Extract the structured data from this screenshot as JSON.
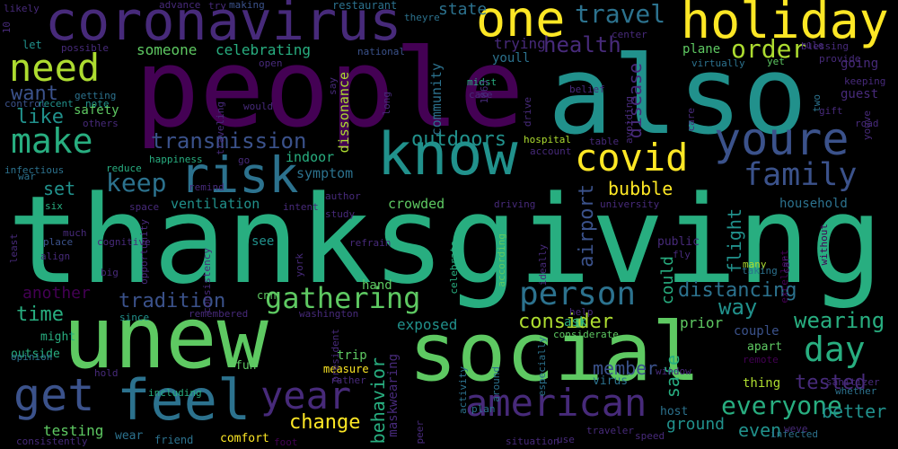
{
  "background": "#000000",
  "palette": {
    "purple": "#440154",
    "indigo": "#472a7a",
    "blue": "#3b528b",
    "steel": "#2c728e",
    "teal": "#21918c",
    "sea": "#28ae80",
    "green": "#5ec962",
    "lime": "#addc30",
    "yellow": "#fde725"
  },
  "words": [
    {
      "text": "thanksgiving",
      "color": "sea"
    },
    {
      "text": "people",
      "color": "purple"
    },
    {
      "text": "also",
      "color": "teal"
    },
    {
      "text": "unew",
      "color": "green"
    },
    {
      "text": "social",
      "color": "green"
    },
    {
      "text": "know",
      "color": "teal"
    },
    {
      "text": "holiday",
      "color": "yellow"
    },
    {
      "text": "coronavirus",
      "color": "indigo"
    },
    {
      "text": "one",
      "color": "yellow"
    },
    {
      "text": "youre",
      "color": "blue"
    },
    {
      "text": "need",
      "color": "lime"
    },
    {
      "text": "make",
      "color": "sea"
    },
    {
      "text": "risk",
      "color": "steel"
    },
    {
      "text": "covid",
      "color": "yellow"
    },
    {
      "text": "feel",
      "color": "steel"
    },
    {
      "text": "american",
      "color": "indigo"
    },
    {
      "text": "get",
      "color": "blue"
    },
    {
      "text": "year",
      "color": "indigo"
    },
    {
      "text": "family",
      "color": "blue"
    },
    {
      "text": "gathering",
      "color": "green"
    },
    {
      "text": "person",
      "color": "steel"
    },
    {
      "text": "everyone",
      "color": "sea"
    },
    {
      "text": "day",
      "color": "sea"
    },
    {
      "text": "keep",
      "color": "steel"
    },
    {
      "text": "travel",
      "color": "steel"
    },
    {
      "text": "order",
      "color": "lime"
    },
    {
      "text": "health",
      "color": "indigo"
    },
    {
      "text": "transmission",
      "color": "blue"
    },
    {
      "text": "outdoors",
      "color": "teal"
    },
    {
      "text": "tradition",
      "color": "blue"
    },
    {
      "text": "distancing",
      "color": "steel"
    },
    {
      "text": "way",
      "color": "teal"
    },
    {
      "text": "wearing",
      "color": "sea"
    },
    {
      "text": "tested",
      "color": "indigo"
    },
    {
      "text": "time",
      "color": "sea"
    },
    {
      "text": "want",
      "color": "blue"
    },
    {
      "text": "like",
      "color": "teal"
    },
    {
      "text": "set",
      "color": "teal"
    },
    {
      "text": "bubble",
      "color": "yellow"
    },
    {
      "text": "consider",
      "color": "lime"
    },
    {
      "text": "safe",
      "color": "sea"
    },
    {
      "text": "airport",
      "color": "blue"
    },
    {
      "text": "disease",
      "color": "indigo"
    },
    {
      "text": "behavior",
      "color": "sea"
    },
    {
      "text": "change",
      "color": "yellow"
    },
    {
      "text": "member",
      "color": "blue"
    },
    {
      "text": "better",
      "color": "teal"
    },
    {
      "text": "even",
      "color": "teal"
    },
    {
      "text": "ground",
      "color": "teal"
    },
    {
      "text": "another",
      "color": "purple"
    },
    {
      "text": "could",
      "color": "sea"
    },
    {
      "text": "flight",
      "color": "teal"
    },
    {
      "text": "exposed",
      "color": "teal"
    },
    {
      "text": "prior",
      "color": "green"
    },
    {
      "text": "state",
      "color": "steel"
    },
    {
      "text": "dissonance",
      "color": "lime"
    },
    {
      "text": "community",
      "color": "steel"
    },
    {
      "text": "safety",
      "color": "green"
    },
    {
      "text": "trying",
      "color": "indigo"
    },
    {
      "text": "celebrating",
      "color": "sea"
    },
    {
      "text": "someone",
      "color": "green"
    },
    {
      "text": "testing",
      "color": "green"
    },
    {
      "text": "maskwearing",
      "color": "indigo"
    },
    {
      "text": "ventilation",
      "color": "teal"
    },
    {
      "text": "crowded",
      "color": "green"
    },
    {
      "text": "symptom",
      "color": "steel"
    },
    {
      "text": "indoor",
      "color": "sea"
    },
    {
      "text": "household",
      "color": "steel"
    },
    {
      "text": "hand",
      "color": "green"
    },
    {
      "text": "youll",
      "color": "steel"
    },
    {
      "text": "plane",
      "color": "green"
    },
    {
      "text": "guest",
      "color": "indigo"
    },
    {
      "text": "going",
      "color": "indigo"
    },
    {
      "text": "thing",
      "color": "lime"
    },
    {
      "text": "trip",
      "color": "green"
    },
    {
      "text": "ask",
      "color": "sea"
    },
    {
      "text": "couple",
      "color": "blue"
    },
    {
      "text": "apart",
      "color": "green"
    },
    {
      "text": "fun",
      "color": "green"
    },
    {
      "text": "wear",
      "color": "steel"
    },
    {
      "text": "friend",
      "color": "steel"
    },
    {
      "text": "comfort",
      "color": "yellow"
    },
    {
      "text": "might",
      "color": "sea"
    },
    {
      "text": "outside",
      "color": "sea"
    },
    {
      "text": "public",
      "color": "indigo"
    },
    {
      "text": "cnn",
      "color": "green"
    },
    {
      "text": "see",
      "color": "teal"
    },
    {
      "text": "host",
      "color": "steel"
    },
    {
      "text": "virus",
      "color": "steel"
    },
    {
      "text": "measure",
      "color": "yellow"
    },
    {
      "text": "control",
      "color": "blue"
    },
    {
      "text": "recent",
      "color": "teal"
    },
    {
      "text": "note",
      "color": "teal"
    },
    {
      "text": "advance",
      "color": "indigo"
    },
    {
      "text": "making",
      "color": "blue"
    },
    {
      "text": "restaurant",
      "color": "steel"
    },
    {
      "text": "theyre",
      "color": "steel"
    },
    {
      "text": "let",
      "color": "teal"
    },
    {
      "text": "getting",
      "color": "steel"
    },
    {
      "text": "others",
      "color": "indigo"
    },
    {
      "text": "happiness",
      "color": "sea"
    },
    {
      "text": "reduce",
      "color": "sea"
    },
    {
      "text": "infectious",
      "color": "steel"
    },
    {
      "text": "war",
      "color": "steel"
    },
    {
      "text": "six",
      "color": "sea"
    },
    {
      "text": "much",
      "color": "indigo"
    },
    {
      "text": "place",
      "color": "blue"
    },
    {
      "text": "big",
      "color": "indigo"
    },
    {
      "text": "since",
      "color": "teal"
    },
    {
      "text": "remembered",
      "color": "indigo"
    },
    {
      "text": "washington",
      "color": "indigo"
    },
    {
      "text": "opinion",
      "color": "steel"
    },
    {
      "text": "rather",
      "color": "indigo"
    },
    {
      "text": "including",
      "color": "sea"
    },
    {
      "text": "foot",
      "color": "purple"
    },
    {
      "text": "author",
      "color": "indigo"
    },
    {
      "text": "driving",
      "color": "indigo"
    },
    {
      "text": "university",
      "color": "indigo"
    },
    {
      "text": "according",
      "color": "green"
    },
    {
      "text": "celebrate",
      "color": "sea"
    },
    {
      "text": "hospital",
      "color": "lime"
    },
    {
      "text": "table",
      "color": "indigo"
    },
    {
      "text": "case",
      "color": "indigo"
    },
    {
      "text": "midst",
      "color": "sea"
    },
    {
      "text": "national",
      "color": "blue"
    },
    {
      "text": "avoiding",
      "color": "indigo"
    },
    {
      "text": "virtually",
      "color": "steel"
    },
    {
      "text": "yet",
      "color": "green"
    },
    {
      "text": "rule",
      "color": "indigo"
    },
    {
      "text": "blessing",
      "color": "indigo"
    },
    {
      "text": "keeping",
      "color": "indigo"
    },
    {
      "text": "provide",
      "color": "indigo"
    },
    {
      "text": "gift",
      "color": "indigo"
    },
    {
      "text": "two",
      "color": "steel"
    },
    {
      "text": "opportunity",
      "color": "indigo"
    },
    {
      "text": "consistency",
      "color": "indigo"
    },
    {
      "text": "many",
      "color": "lime"
    },
    {
      "text": "excellent",
      "color": "purple"
    },
    {
      "text": "without",
      "color": "purple"
    },
    {
      "text": "taking",
      "color": "steel"
    },
    {
      "text": "activity",
      "color": "steel"
    },
    {
      "text": "especially",
      "color": "steel"
    },
    {
      "text": "considerate",
      "color": "green"
    },
    {
      "text": "sanitizer",
      "color": "indigo"
    },
    {
      "text": "whether",
      "color": "steel"
    },
    {
      "text": "infected",
      "color": "steel"
    },
    {
      "text": "weve",
      "color": "indigo"
    },
    {
      "text": "traveler",
      "color": "indigo"
    },
    {
      "text": "speed",
      "color": "indigo"
    },
    {
      "text": "use",
      "color": "indigo"
    },
    {
      "text": "situation",
      "color": "indigo"
    },
    {
      "text": "peer",
      "color": "indigo"
    },
    {
      "text": "plan",
      "color": "steel"
    },
    {
      "text": "around",
      "color": "steel"
    },
    {
      "text": "consistently",
      "color": "indigo"
    },
    {
      "text": "hold",
      "color": "indigo"
    },
    {
      "text": "window",
      "color": "indigo"
    },
    {
      "text": "remote",
      "color": "purple"
    },
    {
      "text": "help",
      "color": "indigo"
    },
    {
      "text": "likely",
      "color": "indigo"
    },
    {
      "text": "10",
      "color": "indigo"
    },
    {
      "text": "possible",
      "color": "indigo"
    },
    {
      "text": "try",
      "color": "indigo"
    },
    {
      "text": "center",
      "color": "indigo"
    },
    {
      "text": "open",
      "color": "indigo"
    },
    {
      "text": "say",
      "color": "indigo"
    },
    {
      "text": "long",
      "color": "indigo"
    },
    {
      "text": "1863",
      "color": "indigo"
    },
    {
      "text": "drive",
      "color": "indigo"
    },
    {
      "text": "belief",
      "color": "indigo"
    },
    {
      "text": "account",
      "color": "indigo"
    },
    {
      "text": "would",
      "color": "indigo"
    },
    {
      "text": "traveling",
      "color": "indigo"
    },
    {
      "text": "go",
      "color": "indigo"
    },
    {
      "text": "remind",
      "color": "indigo"
    },
    {
      "text": "space",
      "color": "indigo"
    },
    {
      "text": "intent",
      "color": "indigo"
    },
    {
      "text": "study",
      "color": "indigo"
    },
    {
      "text": "cognitive",
      "color": "indigo"
    },
    {
      "text": "align",
      "color": "indigo"
    },
    {
      "text": "refrain",
      "color": "indigo"
    },
    {
      "text": "ideally",
      "color": "indigo"
    },
    {
      "text": "fly",
      "color": "indigo"
    },
    {
      "text": "least",
      "color": "indigo"
    },
    {
      "text": "president",
      "color": "indigo"
    },
    {
      "text": "youve",
      "color": "indigo"
    },
    {
      "text": "road",
      "color": "indigo"
    },
    {
      "text": "care",
      "color": "indigo"
    },
    {
      "text": "york",
      "color": "indigo"
    },
    {
      "text": "car",
      "color": "indigo"
    },
    {
      "text": "protect",
      "color": "indigo"
    }
  ]
}
